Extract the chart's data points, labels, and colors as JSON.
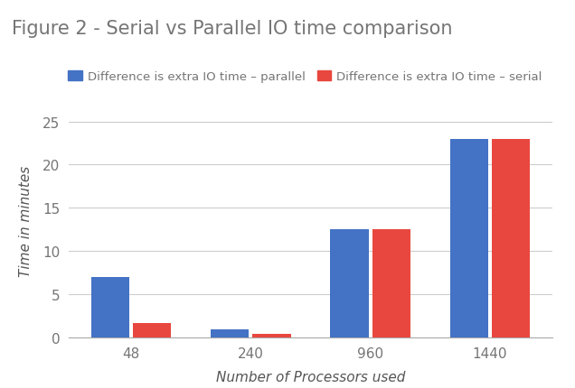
{
  "title": "Figure 2 - Serial vs Parallel IO time comparison",
  "xlabel": "Number of Processors used",
  "ylabel": "Time in minutes",
  "categories": [
    "48",
    "240",
    "960",
    "1440"
  ],
  "parallel_values": [
    7.0,
    0.9,
    12.5,
    23.0
  ],
  "serial_values": [
    1.7,
    0.4,
    12.5,
    23.0
  ],
  "parallel_color": "#4472C4",
  "serial_color": "#E8473F",
  "legend_parallel": "Difference is extra IO time – parallel",
  "legend_serial": "Difference is extra IO time – serial",
  "ylim": [
    0,
    27
  ],
  "yticks": [
    0,
    5,
    10,
    15,
    20,
    25
  ],
  "background_color": "#ffffff",
  "grid_color": "#cccccc",
  "title_color": "#757575",
  "axis_label_color": "#555555",
  "tick_color": "#757575",
  "bar_width": 0.32,
  "bar_gap": 0.03
}
